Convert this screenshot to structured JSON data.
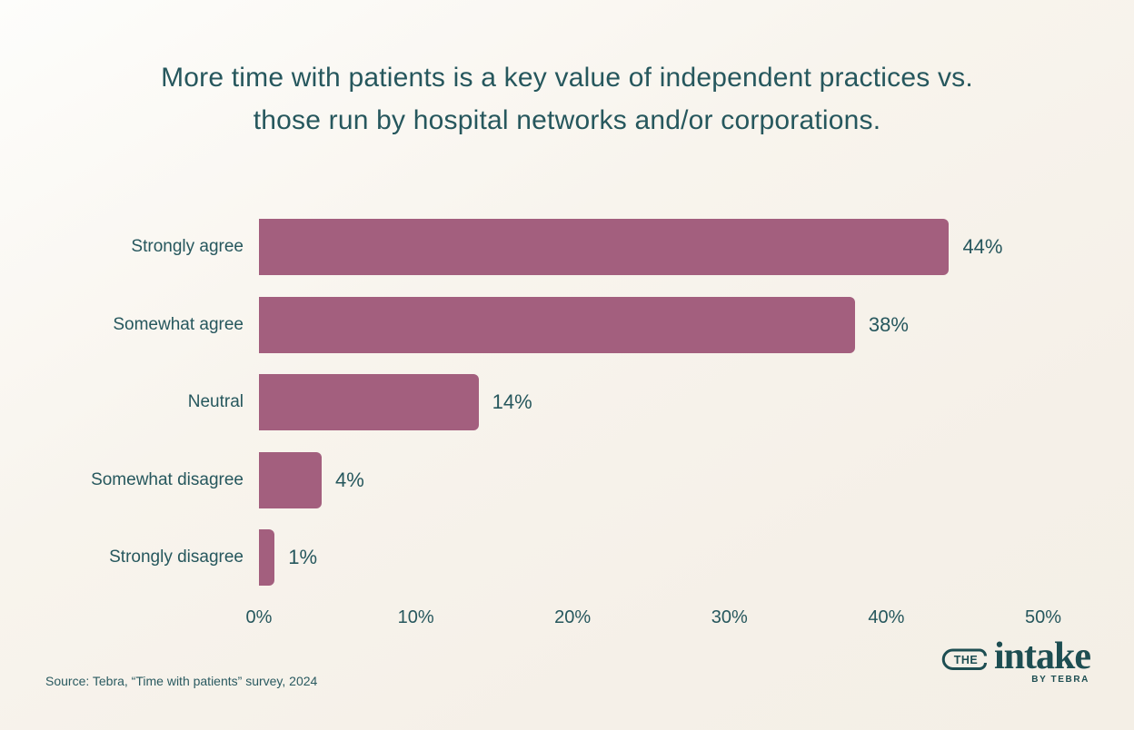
{
  "page": {
    "background_top": "#fdfdfb",
    "background_bottom": "#f4efe6",
    "text_color": "#26575d"
  },
  "chart_data": {
    "type": "bar",
    "orientation": "horizontal",
    "title": "More time with patients is a key value of independent practices vs. those run by hospital networks and/or corporations.",
    "categories": [
      "Strongly agree",
      "Somewhat agree",
      "Neutral",
      "Somewhat disagree",
      "Strongly disagree"
    ],
    "values": [
      44,
      38,
      14,
      4,
      1
    ],
    "value_labels": [
      "44%",
      "38%",
      "14%",
      "4%",
      "1%"
    ],
    "x_tick_labels": [
      "0%",
      "10%",
      "20%",
      "30%",
      "40%",
      "50%"
    ],
    "xlim": [
      0,
      50
    ],
    "xlabel": "",
    "ylabel": "",
    "grid": false,
    "legend": false,
    "bar_color": "#a35f7e",
    "text_color": "#26575d"
  },
  "footer": {
    "source": "Source: Tebra, “Time with patients” survey, 2024",
    "logo": {
      "the": "THE",
      "intake": "intake",
      "byline": "BY TEBRA"
    }
  }
}
